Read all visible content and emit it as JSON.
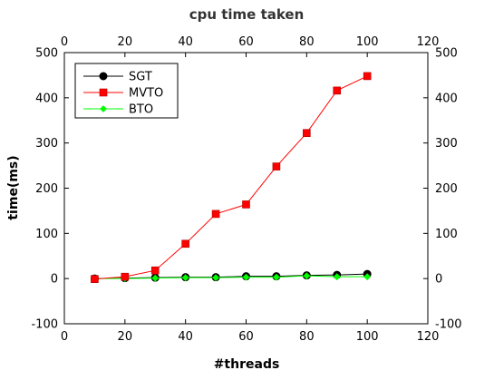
{
  "chart_data": {
    "type": "line",
    "title": "cpu time taken",
    "xlabel": "#threads",
    "ylabel": "time(ms)",
    "xlim": [
      0,
      120
    ],
    "ylim": [
      -100,
      500
    ],
    "xticks": [
      0,
      20,
      40,
      60,
      80,
      100,
      120
    ],
    "yticks": [
      -100,
      0,
      100,
      200,
      300,
      400,
      500
    ],
    "grid": false,
    "mirror_axes": true,
    "legend_position": "top-left",
    "x": [
      10,
      20,
      30,
      40,
      50,
      60,
      70,
      80,
      90,
      100
    ],
    "series": [
      {
        "name": "SGT",
        "color": "#000000",
        "marker": "circle",
        "values": [
          0,
          1,
          2,
          3,
          3,
          5,
          5,
          7,
          8,
          10
        ]
      },
      {
        "name": "MVTO",
        "color": "#ff0000",
        "marker": "square",
        "values": [
          -1,
          4,
          18,
          77,
          143,
          164,
          248,
          322,
          416,
          448
        ]
      },
      {
        "name": "BTO",
        "color": "#00ff00",
        "marker": "diamond",
        "values": [
          0,
          0,
          1,
          2,
          2,
          3,
          3,
          6,
          4,
          4
        ]
      }
    ]
  }
}
